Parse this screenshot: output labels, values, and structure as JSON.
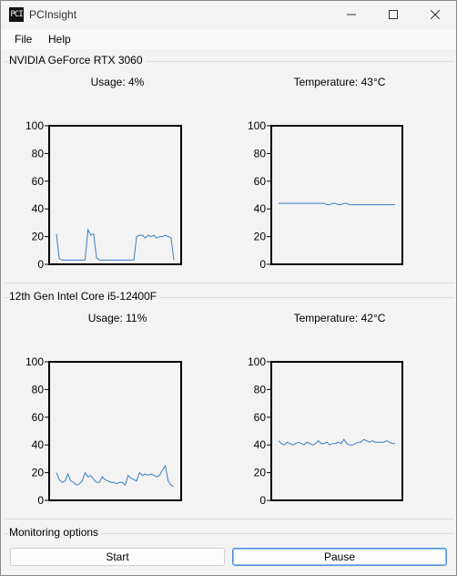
{
  "window": {
    "title": "PCInsight",
    "icon_text": "PCI"
  },
  "menu": {
    "items": [
      "File",
      "Help"
    ]
  },
  "gpu": {
    "name": "NVIDIA GeForce RTX 3060",
    "usage_label": "Usage: 4%",
    "temp_label": "Temperature: 43°C"
  },
  "cpu": {
    "name": "12th Gen Intel Core i5-12400F",
    "usage_label": "Usage: 11%",
    "temp_label": "Temperature: 42°C"
  },
  "monitoring": {
    "title": "Monitoring options",
    "start_label": "Start",
    "pause_label": "Pause"
  },
  "chart_data": [
    {
      "type": "line",
      "ylim": [
        0,
        100
      ],
      "yticks": [
        0,
        20,
        40,
        60,
        80,
        100
      ],
      "color": "#3b7fc4",
      "values": [
        22,
        4,
        3,
        3,
        3,
        3,
        3,
        3,
        3,
        3,
        3,
        25,
        21,
        22,
        5,
        3,
        3,
        3,
        3,
        3,
        3,
        3,
        3,
        3,
        3,
        3,
        3,
        3,
        20,
        21,
        21,
        19,
        21,
        20,
        21,
        19,
        20,
        20,
        21,
        20,
        19,
        3
      ]
    },
    {
      "type": "line",
      "ylim": [
        0,
        100
      ],
      "yticks": [
        0,
        20,
        40,
        60,
        80,
        100
      ],
      "color": "#3b7fc4",
      "values": [
        44,
        44,
        44,
        44,
        44,
        44,
        44,
        44,
        44,
        44,
        44,
        44,
        44,
        44,
        44,
        44,
        44,
        43,
        43,
        44,
        44,
        43,
        43,
        44,
        44,
        43,
        43,
        43,
        43,
        43,
        43,
        43,
        43,
        43,
        43,
        43,
        43,
        43,
        43,
        43,
        43,
        43
      ]
    },
    {
      "type": "line",
      "ylim": [
        0,
        100
      ],
      "yticks": [
        0,
        20,
        40,
        60,
        80,
        100
      ],
      "color": "#3b7fc4",
      "values": [
        20,
        15,
        13,
        14,
        19,
        14,
        13,
        11,
        12,
        14,
        20,
        17,
        18,
        15,
        13,
        13,
        17,
        15,
        14,
        13,
        13,
        12,
        13,
        13,
        11,
        18,
        16,
        15,
        14,
        20,
        18,
        19,
        18,
        19,
        18,
        17,
        18,
        22,
        25,
        14,
        11,
        10
      ]
    },
    {
      "type": "line",
      "ylim": [
        0,
        100
      ],
      "yticks": [
        0,
        20,
        40,
        60,
        80,
        100
      ],
      "color": "#3b7fc4",
      "values": [
        43,
        41,
        40,
        42,
        41,
        40,
        41,
        42,
        41,
        40,
        42,
        41,
        40,
        41,
        43,
        41,
        41,
        42,
        40,
        41,
        41,
        42,
        41,
        44,
        41,
        40,
        40,
        41,
        42,
        42,
        44,
        43,
        42,
        43,
        42,
        42,
        42,
        42,
        43,
        42,
        41,
        41
      ]
    }
  ]
}
